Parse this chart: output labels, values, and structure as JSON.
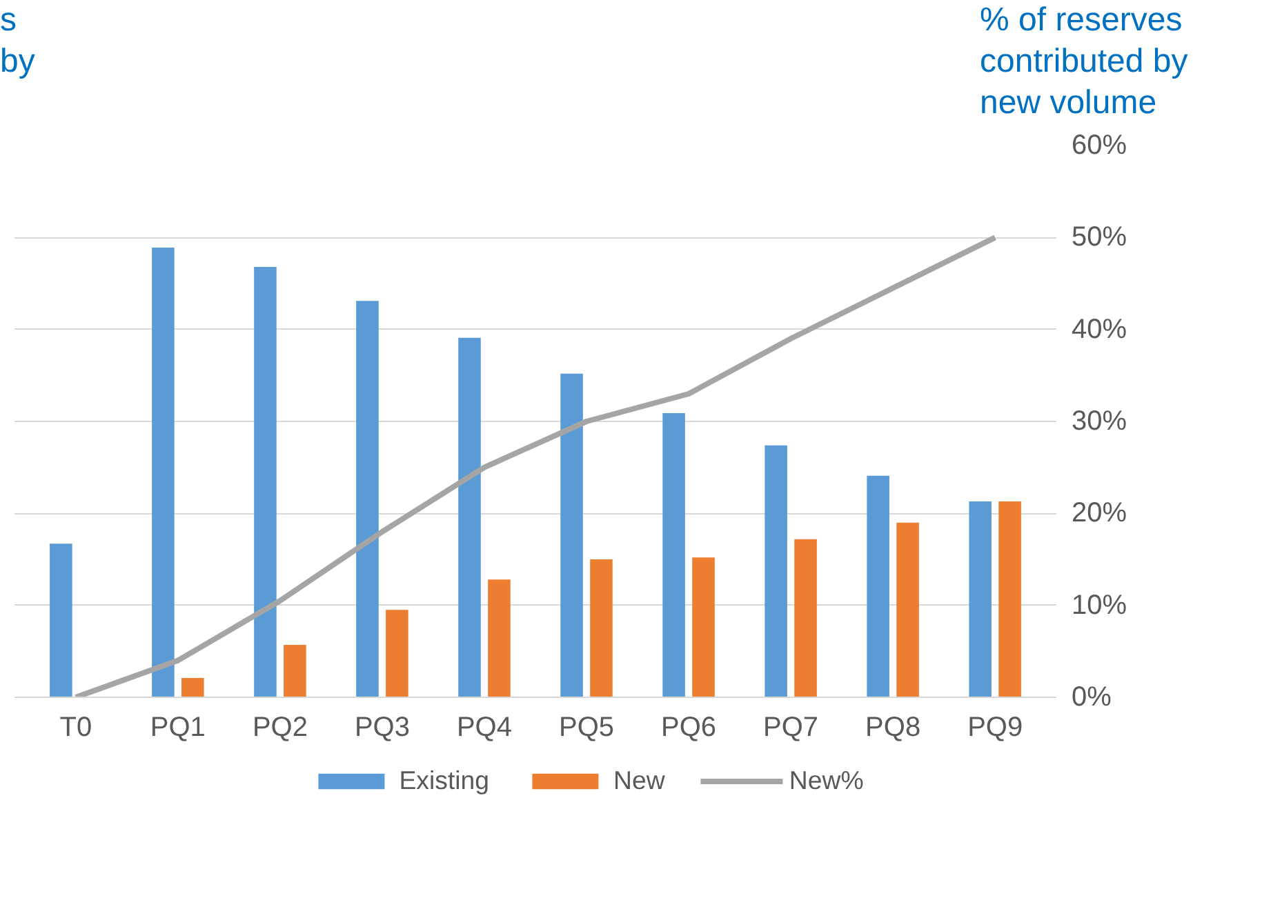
{
  "chart_data": {
    "type": "bar",
    "ylabel": "% of reserves contributed by new volume",
    "annotations": [
      "s",
      "by"
    ],
    "categories": [
      "T0",
      "PQ1",
      "PQ2",
      "PQ3",
      "PQ4",
      "PQ5",
      "PQ6",
      "PQ7",
      "PQ8",
      "PQ9"
    ],
    "series": [
      {
        "name": "Existing",
        "color": "#5b9bd5",
        "values": [
          16.7,
          48.9,
          46.8,
          43.1,
          39.1,
          35.2,
          30.9,
          27.4,
          24.1,
          21.3
        ]
      },
      {
        "name": "New",
        "color": "#ed7d31",
        "values": [
          0,
          2.1,
          5.7,
          9.5,
          12.8,
          15.0,
          15.2,
          17.2,
          19.0,
          21.3
        ]
      },
      {
        "name": "New%",
        "type": "line",
        "color": "#a5a5a5",
        "values": [
          0,
          4,
          10.5,
          18,
          25,
          30,
          33,
          39,
          44.5,
          50
        ]
      }
    ],
    "ylim": [
      0,
      60
    ],
    "yticks": [
      {
        "value": 0,
        "label": "0%"
      },
      {
        "value": 10,
        "label": "10%"
      },
      {
        "value": 20,
        "label": "20%"
      },
      {
        "value": 30,
        "label": "30%"
      },
      {
        "value": 40,
        "label": "40%"
      },
      {
        "value": 50,
        "label": "50%"
      },
      {
        "value": 60,
        "label": "60%"
      }
    ],
    "grid": "y",
    "legend": "bottom",
    "marker": "none",
    "line_style": "solid"
  }
}
